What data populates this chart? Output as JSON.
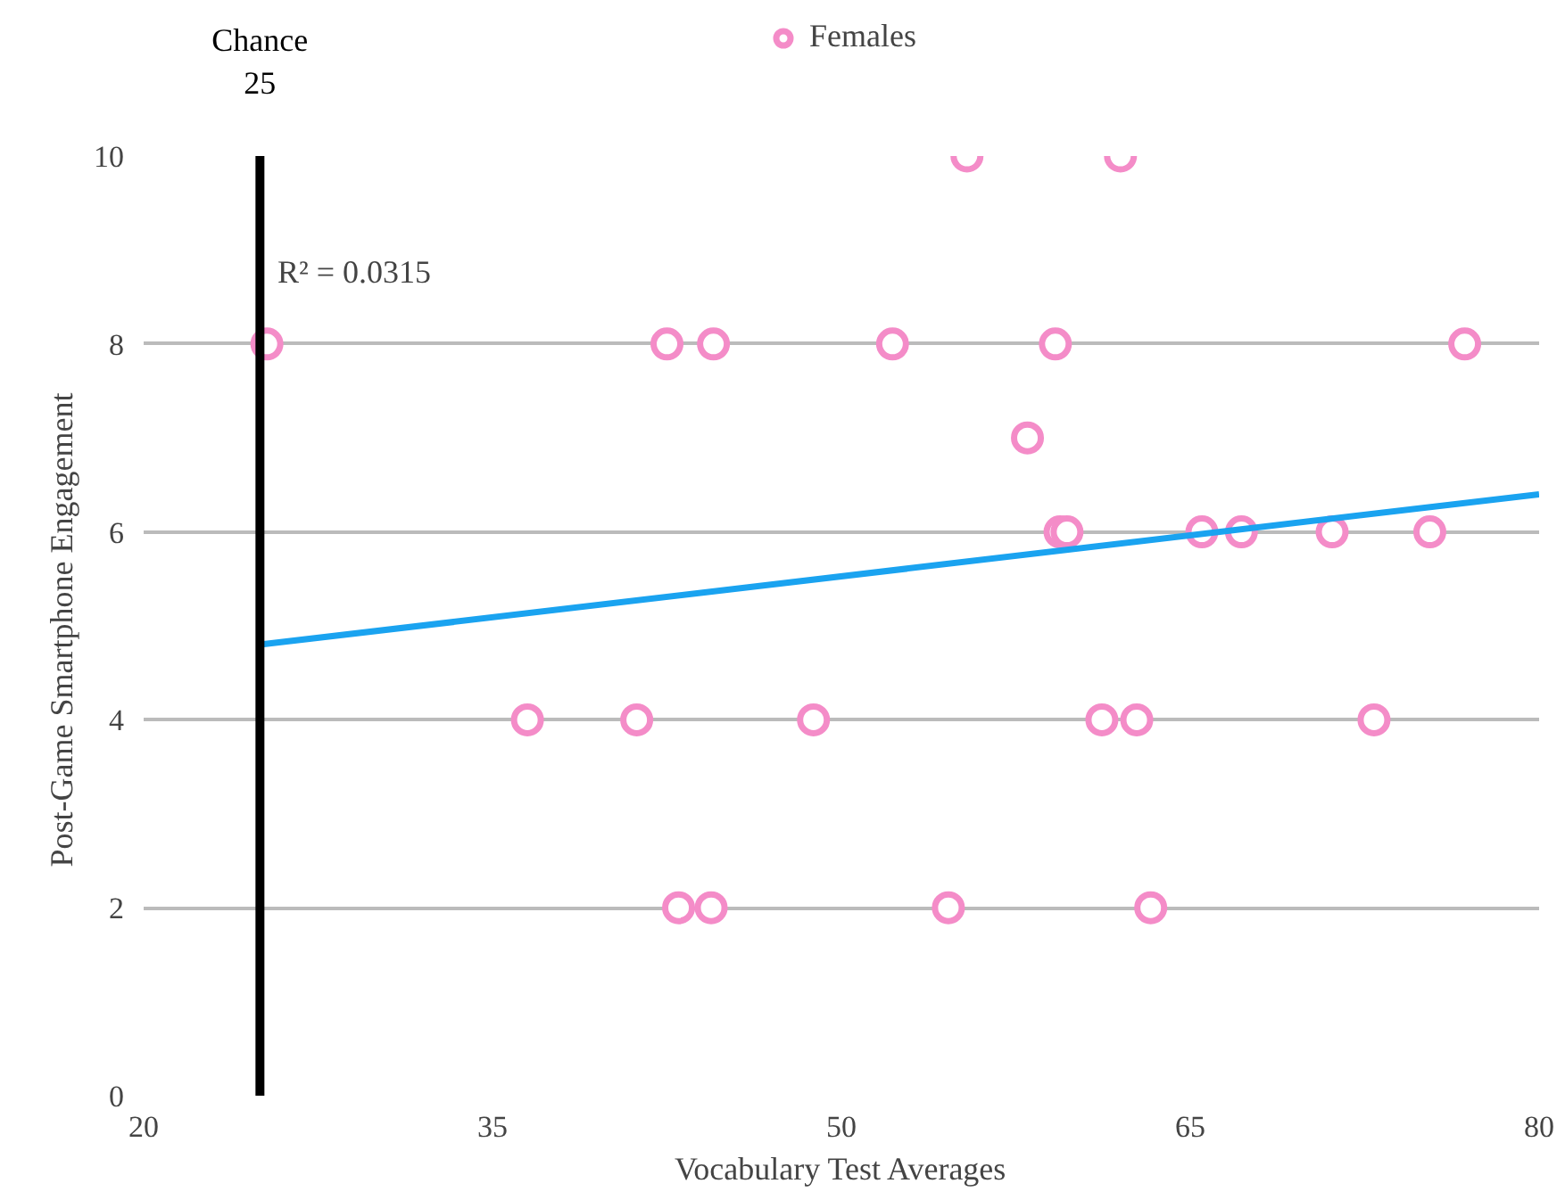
{
  "chart_data": {
    "type": "scatter",
    "xlabel": "Vocabulary Test Averages",
    "ylabel": "Post-Game  Smartphone Engagement",
    "xlim": [
      20,
      80
    ],
    "xticks": [
      20,
      35,
      50,
      65,
      80
    ],
    "ylim": [
      0,
      10
    ],
    "yticks": [
      0,
      2,
      4,
      6,
      8,
      10
    ],
    "grid": "y",
    "legend": "top",
    "marker": "circle",
    "series": [
      {
        "name": "Females",
        "color": "#f48cc8",
        "x": [
          55.4,
          62.0,
          25.3,
          42.5,
          44.5,
          52.2,
          59.2,
          76.8,
          58.0,
          59.4,
          59.7,
          65.5,
          67.2,
          71.1,
          75.3,
          36.5,
          41.2,
          48.8,
          61.2,
          62.7,
          72.9,
          43.0,
          44.4,
          54.6,
          63.3
        ],
        "values": [
          10,
          10,
          8,
          8,
          8,
          8,
          8,
          8,
          7,
          6,
          6,
          6,
          6,
          6,
          6,
          4,
          4,
          4,
          4,
          4,
          4,
          2,
          2,
          2,
          2
        ]
      },
      {
        "type": "line",
        "marker": "none",
        "color": "#1aa3f0",
        "x": [
          25,
          80
        ],
        "values": [
          4.8,
          6.4
        ]
      }
    ],
    "ref_lines": [
      {
        "axis": "x",
        "value": 25,
        "label": "Chance\n25",
        "color": "#000000"
      }
    ],
    "annotations": [
      "R² = 0.0315"
    ]
  }
}
